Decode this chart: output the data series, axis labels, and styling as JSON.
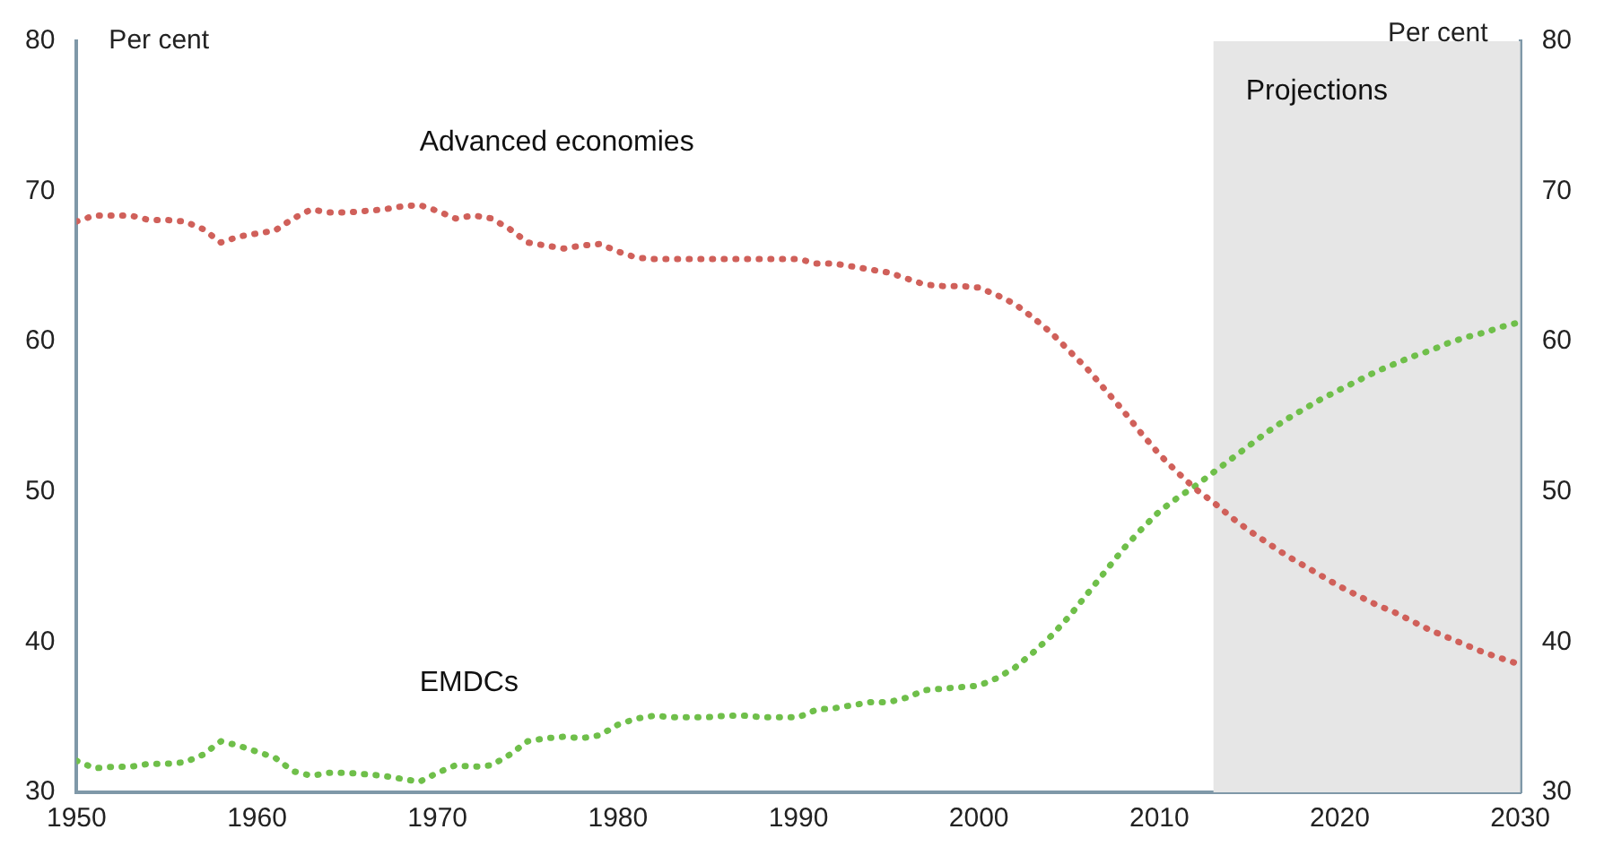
{
  "chart_data": {
    "type": "line",
    "ylabel": "Per cent",
    "y2label": "Per cent",
    "x": [
      1950,
      1951,
      1952,
      1953,
      1954,
      1955,
      1956,
      1957,
      1958,
      1959,
      1960,
      1961,
      1962,
      1963,
      1964,
      1965,
      1966,
      1967,
      1968,
      1969,
      1970,
      1971,
      1972,
      1973,
      1974,
      1975,
      1976,
      1977,
      1978,
      1979,
      1980,
      1981,
      1982,
      1983,
      1984,
      1985,
      1986,
      1987,
      1988,
      1989,
      1990,
      1991,
      1992,
      1993,
      1994,
      1995,
      1996,
      1997,
      1998,
      1999,
      2000,
      2001,
      2002,
      2003,
      2004,
      2005,
      2006,
      2007,
      2008,
      2009,
      2010,
      2011,
      2012,
      2013,
      2014,
      2015,
      2016,
      2017,
      2018,
      2019,
      2020,
      2021,
      2022,
      2023,
      2024,
      2025,
      2026,
      2027,
      2028,
      2029,
      2030
    ],
    "series": [
      {
        "name": "Advanced economies",
        "color": "#d0605a",
        "values": [
          68,
          68.4,
          68.4,
          68.4,
          68.1,
          68.1,
          68,
          67.5,
          66.6,
          67,
          67.2,
          67.4,
          68.2,
          68.8,
          68.6,
          68.6,
          68.7,
          68.8,
          69,
          69.1,
          68.7,
          68.2,
          68.4,
          68.2,
          67.5,
          66.6,
          66.4,
          66.2,
          66.4,
          66.5,
          66,
          65.6,
          65.5,
          65.5,
          65.5,
          65.5,
          65.5,
          65.5,
          65.5,
          65.5,
          65.5,
          65.2,
          65.2,
          65,
          64.8,
          64.6,
          64.2,
          63.8,
          63.7,
          63.7,
          63.6,
          63.1,
          62.5,
          61.6,
          60.6,
          59.4,
          58.2,
          56.8,
          55.4,
          53.9,
          52.5,
          51.3,
          50.2,
          49.3,
          48.3,
          47.4,
          46.6,
          45.8,
          45.1,
          44.4,
          43.7,
          43.1,
          42.5,
          42,
          41.4,
          40.8,
          40.3,
          39.8,
          39.3,
          38.9,
          38.5
        ]
      },
      {
        "name": "EMDCs",
        "color": "#6fbf4a",
        "values": [
          32.1,
          31.6,
          31.7,
          31.7,
          31.9,
          31.9,
          32,
          32.5,
          33.4,
          33.1,
          32.7,
          32.3,
          31.4,
          31.1,
          31.3,
          31.3,
          31.2,
          31.1,
          30.9,
          30.7,
          31.3,
          31.8,
          31.7,
          31.8,
          32.5,
          33.4,
          33.6,
          33.7,
          33.6,
          33.8,
          34.5,
          34.9,
          35.1,
          35,
          35,
          35,
          35.1,
          35.1,
          35,
          35,
          35,
          35.5,
          35.6,
          35.8,
          36,
          36,
          36.3,
          36.8,
          36.9,
          37,
          37.1,
          37.6,
          38.3,
          39.3,
          40.4,
          41.7,
          43.2,
          44.7,
          46.2,
          47.5,
          48.7,
          49.6,
          50.4,
          51.3,
          52.2,
          53.1,
          54,
          54.8,
          55.5,
          56.2,
          56.8,
          57.4,
          58,
          58.5,
          59,
          59.4,
          59.9,
          60.3,
          60.6,
          61,
          61.3
        ]
      }
    ],
    "xlim": [
      1950,
      2030
    ],
    "xticks": [
      1950,
      1960,
      1970,
      1980,
      1990,
      2000,
      2010,
      2020,
      2030
    ],
    "ylim": [
      30,
      80
    ],
    "yticks": [
      30,
      40,
      50,
      60,
      70,
      80
    ],
    "y2lim": [
      30,
      80
    ],
    "y2ticks": [
      30,
      40,
      50,
      60,
      70,
      80
    ],
    "bands": [
      {
        "axis": "x",
        "from": 2013,
        "to": 2030,
        "label": "Projections",
        "color": "#e6e6e6"
      }
    ],
    "grid": false,
    "legend": false,
    "marker": "none",
    "line_style": "dotted"
  }
}
